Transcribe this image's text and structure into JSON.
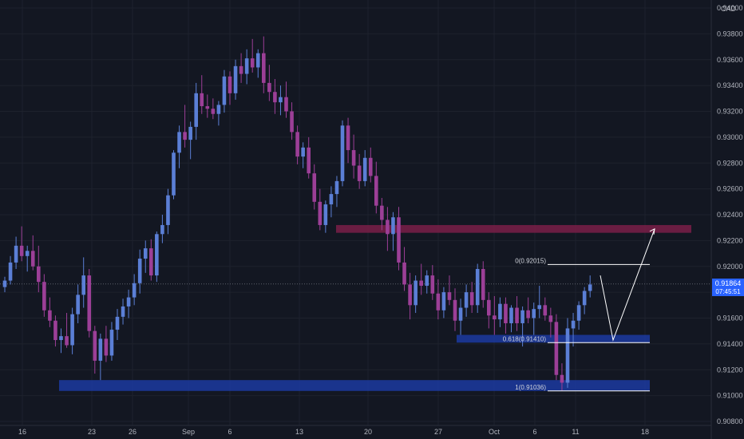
{
  "currency_label": "CAD",
  "price_label": {
    "price": "0.91864",
    "countdown": "07:45:51"
  },
  "chart_data": {
    "type": "candlestick",
    "title": "",
    "ylim": [
      0.908,
      0.94
    ],
    "y_ticks": [
      0.908,
      0.91,
      0.912,
      0.914,
      0.916,
      0.918,
      0.92,
      0.922,
      0.924,
      0.926,
      0.928,
      0.93,
      0.932,
      0.934,
      0.936,
      0.938,
      0.94
    ],
    "y_tick_labels": [
      "0.90800",
      "0.91000",
      "0.91200",
      "0.91400",
      "0.91600",
      "0.91800",
      "0.92000",
      "0.92200",
      "0.92400",
      "0.92600",
      "0.92800",
      "0.93000",
      "0.93200",
      "0.93400",
      "0.93600",
      "0.93800",
      "0.94000"
    ],
    "x_labels": [
      "16",
      "23",
      "26",
      "Sep",
      "6",
      "13",
      "20",
      "27",
      "Oct",
      "6",
      "11",
      "18"
    ],
    "colors": {
      "up": "#5b7fd6",
      "down": "#9c3f97",
      "background": "#131722",
      "grid": "#1e222d",
      "zone_red": "#7a1e48",
      "zone_blue": "#1c3aa0",
      "lines": "#ffffff"
    },
    "zones": [
      {
        "name": "resistance-zone",
        "from": 0.9226,
        "to": 0.9232,
        "color": "#7a1e48"
      },
      {
        "name": "support-zone-0618",
        "from": 0.9141,
        "to": 0.9147,
        "color": "#1c3aa0"
      },
      {
        "name": "support-zone-1",
        "from": 0.91036,
        "to": 0.9112,
        "color": "#1c3aa0"
      }
    ],
    "fib_levels": [
      {
        "label": "0(0.92015)",
        "value": 0.92015
      },
      {
        "label": "0.618(0.91410)",
        "value": 0.9141
      },
      {
        "label": "1(0.91036)",
        "value": 0.91036
      }
    ],
    "projection": [
      0.9193,
      0.9143,
      0.9229
    ],
    "current_price": 0.91864,
    "candles": [
      [
        0.9184,
        0.9192,
        0.918,
        0.9189
      ],
      [
        0.9189,
        0.9208,
        0.9186,
        0.9203
      ],
      [
        0.9203,
        0.9223,
        0.9198,
        0.9216
      ],
      [
        0.9216,
        0.9231,
        0.9204,
        0.9208
      ],
      [
        0.9208,
        0.9216,
        0.9196,
        0.9212
      ],
      [
        0.9212,
        0.9224,
        0.9197,
        0.92
      ],
      [
        0.92,
        0.9216,
        0.918,
        0.9188
      ],
      [
        0.9188,
        0.9194,
        0.9161,
        0.9166
      ],
      [
        0.9166,
        0.9176,
        0.9153,
        0.9158
      ],
      [
        0.9158,
        0.9162,
        0.9138,
        0.9143
      ],
      [
        0.9143,
        0.9152,
        0.9133,
        0.9146
      ],
      [
        0.9146,
        0.9164,
        0.9137,
        0.9139
      ],
      [
        0.9139,
        0.9168,
        0.9132,
        0.9163
      ],
      [
        0.9163,
        0.9186,
        0.9156,
        0.9178
      ],
      [
        0.9178,
        0.9207,
        0.9168,
        0.9193
      ],
      [
        0.9193,
        0.9198,
        0.9145,
        0.915
      ],
      [
        0.915,
        0.9154,
        0.9117,
        0.9127
      ],
      [
        0.9127,
        0.9148,
        0.9112,
        0.9144
      ],
      [
        0.9144,
        0.9154,
        0.9126,
        0.9131
      ],
      [
        0.9131,
        0.9157,
        0.9127,
        0.9151
      ],
      [
        0.9151,
        0.9167,
        0.9143,
        0.9161
      ],
      [
        0.9161,
        0.9175,
        0.9155,
        0.9169
      ],
      [
        0.9169,
        0.9182,
        0.916,
        0.9176
      ],
      [
        0.9176,
        0.9194,
        0.917,
        0.9187
      ],
      [
        0.9187,
        0.9213,
        0.9179,
        0.9206
      ],
      [
        0.9206,
        0.922,
        0.9195,
        0.9214
      ],
      [
        0.9214,
        0.9221,
        0.9189,
        0.9193
      ],
      [
        0.9193,
        0.9227,
        0.9188,
        0.9225
      ],
      [
        0.9225,
        0.924,
        0.9218,
        0.9232
      ],
      [
        0.9232,
        0.926,
        0.9225,
        0.9255
      ],
      [
        0.9255,
        0.929,
        0.9252,
        0.9288
      ],
      [
        0.9288,
        0.9309,
        0.9276,
        0.9304
      ],
      [
        0.9304,
        0.9325,
        0.9292,
        0.9298
      ],
      [
        0.9298,
        0.9312,
        0.9283,
        0.9308
      ],
      [
        0.9308,
        0.9342,
        0.9298,
        0.9334
      ],
      [
        0.9334,
        0.9348,
        0.9318,
        0.9324
      ],
      [
        0.9324,
        0.9333,
        0.9315,
        0.9322
      ],
      [
        0.9322,
        0.933,
        0.9314,
        0.9318
      ],
      [
        0.9318,
        0.9328,
        0.9309,
        0.9325
      ],
      [
        0.9325,
        0.9352,
        0.9319,
        0.9347
      ],
      [
        0.9347,
        0.9351,
        0.9325,
        0.9334
      ],
      [
        0.9334,
        0.936,
        0.9329,
        0.9355
      ],
      [
        0.9355,
        0.9365,
        0.9342,
        0.9349
      ],
      [
        0.9349,
        0.9368,
        0.9341,
        0.9361
      ],
      [
        0.9361,
        0.9376,
        0.935,
        0.9354
      ],
      [
        0.9354,
        0.9368,
        0.9346,
        0.9365
      ],
      [
        0.9365,
        0.9378,
        0.9334,
        0.9342
      ],
      [
        0.9342,
        0.9356,
        0.9328,
        0.9335
      ],
      [
        0.9335,
        0.9345,
        0.9318,
        0.9327
      ],
      [
        0.9327,
        0.934,
        0.9317,
        0.9331
      ],
      [
        0.9331,
        0.9343,
        0.9315,
        0.932
      ],
      [
        0.932,
        0.9327,
        0.9298,
        0.9304
      ],
      [
        0.9304,
        0.9309,
        0.9279,
        0.9285
      ],
      [
        0.9285,
        0.9296,
        0.9276,
        0.9292
      ],
      [
        0.9292,
        0.93,
        0.9268,
        0.9272
      ],
      [
        0.9272,
        0.9279,
        0.9244,
        0.925
      ],
      [
        0.925,
        0.926,
        0.9228,
        0.9232
      ],
      [
        0.9232,
        0.9251,
        0.9226,
        0.9248
      ],
      [
        0.9248,
        0.9262,
        0.9238,
        0.9256
      ],
      [
        0.9256,
        0.927,
        0.9246,
        0.9266
      ],
      [
        0.9266,
        0.9313,
        0.9262,
        0.9309
      ],
      [
        0.9309,
        0.9315,
        0.928,
        0.929
      ],
      [
        0.929,
        0.9302,
        0.9268,
        0.9278
      ],
      [
        0.9278,
        0.9287,
        0.926,
        0.9266
      ],
      [
        0.9266,
        0.929,
        0.9262,
        0.9284
      ],
      [
        0.9284,
        0.9292,
        0.9265,
        0.927
      ],
      [
        0.927,
        0.9281,
        0.9241,
        0.9247
      ],
      [
        0.9247,
        0.9253,
        0.9228,
        0.9236
      ],
      [
        0.9236,
        0.9246,
        0.9212,
        0.9225
      ],
      [
        0.9225,
        0.9242,
        0.9212,
        0.9238
      ],
      [
        0.9238,
        0.9246,
        0.9197,
        0.9203
      ],
      [
        0.9203,
        0.9215,
        0.9181,
        0.9186
      ],
      [
        0.9186,
        0.9195,
        0.9159,
        0.917
      ],
      [
        0.917,
        0.9193,
        0.9164,
        0.9189
      ],
      [
        0.9189,
        0.9202,
        0.9178,
        0.9185
      ],
      [
        0.9185,
        0.9197,
        0.9179,
        0.9193
      ],
      [
        0.9193,
        0.9201,
        0.9174,
        0.9179
      ],
      [
        0.9179,
        0.919,
        0.9159,
        0.9166
      ],
      [
        0.9166,
        0.9184,
        0.916,
        0.918
      ],
      [
        0.918,
        0.9193,
        0.917,
        0.9174
      ],
      [
        0.9174,
        0.9183,
        0.915,
        0.9158
      ],
      [
        0.9158,
        0.9175,
        0.9147,
        0.9168
      ],
      [
        0.9168,
        0.9186,
        0.9161,
        0.918
      ],
      [
        0.918,
        0.9188,
        0.9164,
        0.917
      ],
      [
        0.917,
        0.9202,
        0.9164,
        0.9198
      ],
      [
        0.9198,
        0.9204,
        0.9168,
        0.9174
      ],
      [
        0.9174,
        0.918,
        0.9152,
        0.9162
      ],
      [
        0.9162,
        0.9177,
        0.9147,
        0.9159
      ],
      [
        0.9159,
        0.9176,
        0.9153,
        0.9171
      ],
      [
        0.9171,
        0.9176,
        0.9148,
        0.9156
      ],
      [
        0.9156,
        0.917,
        0.9149,
        0.9168
      ],
      [
        0.9168,
        0.9177,
        0.915,
        0.9156
      ],
      [
        0.9156,
        0.9169,
        0.9138,
        0.9166
      ],
      [
        0.9166,
        0.9176,
        0.9156,
        0.916
      ],
      [
        0.916,
        0.9172,
        0.9147,
        0.9167
      ],
      [
        0.9167,
        0.9185,
        0.916,
        0.917
      ],
      [
        0.917,
        0.9176,
        0.9158,
        0.9162
      ],
      [
        0.9162,
        0.9168,
        0.9145,
        0.9157
      ],
      [
        0.9157,
        0.9163,
        0.9112,
        0.9116
      ],
      [
        0.9116,
        0.9125,
        0.9104,
        0.911
      ],
      [
        0.911,
        0.916,
        0.9106,
        0.9152
      ],
      [
        0.9152,
        0.9164,
        0.9138,
        0.9158
      ],
      [
        0.9158,
        0.9173,
        0.9151,
        0.917
      ],
      [
        0.917,
        0.9184,
        0.9163,
        0.9181
      ],
      [
        0.9181,
        0.9193,
        0.9176,
        0.9186
      ]
    ]
  }
}
